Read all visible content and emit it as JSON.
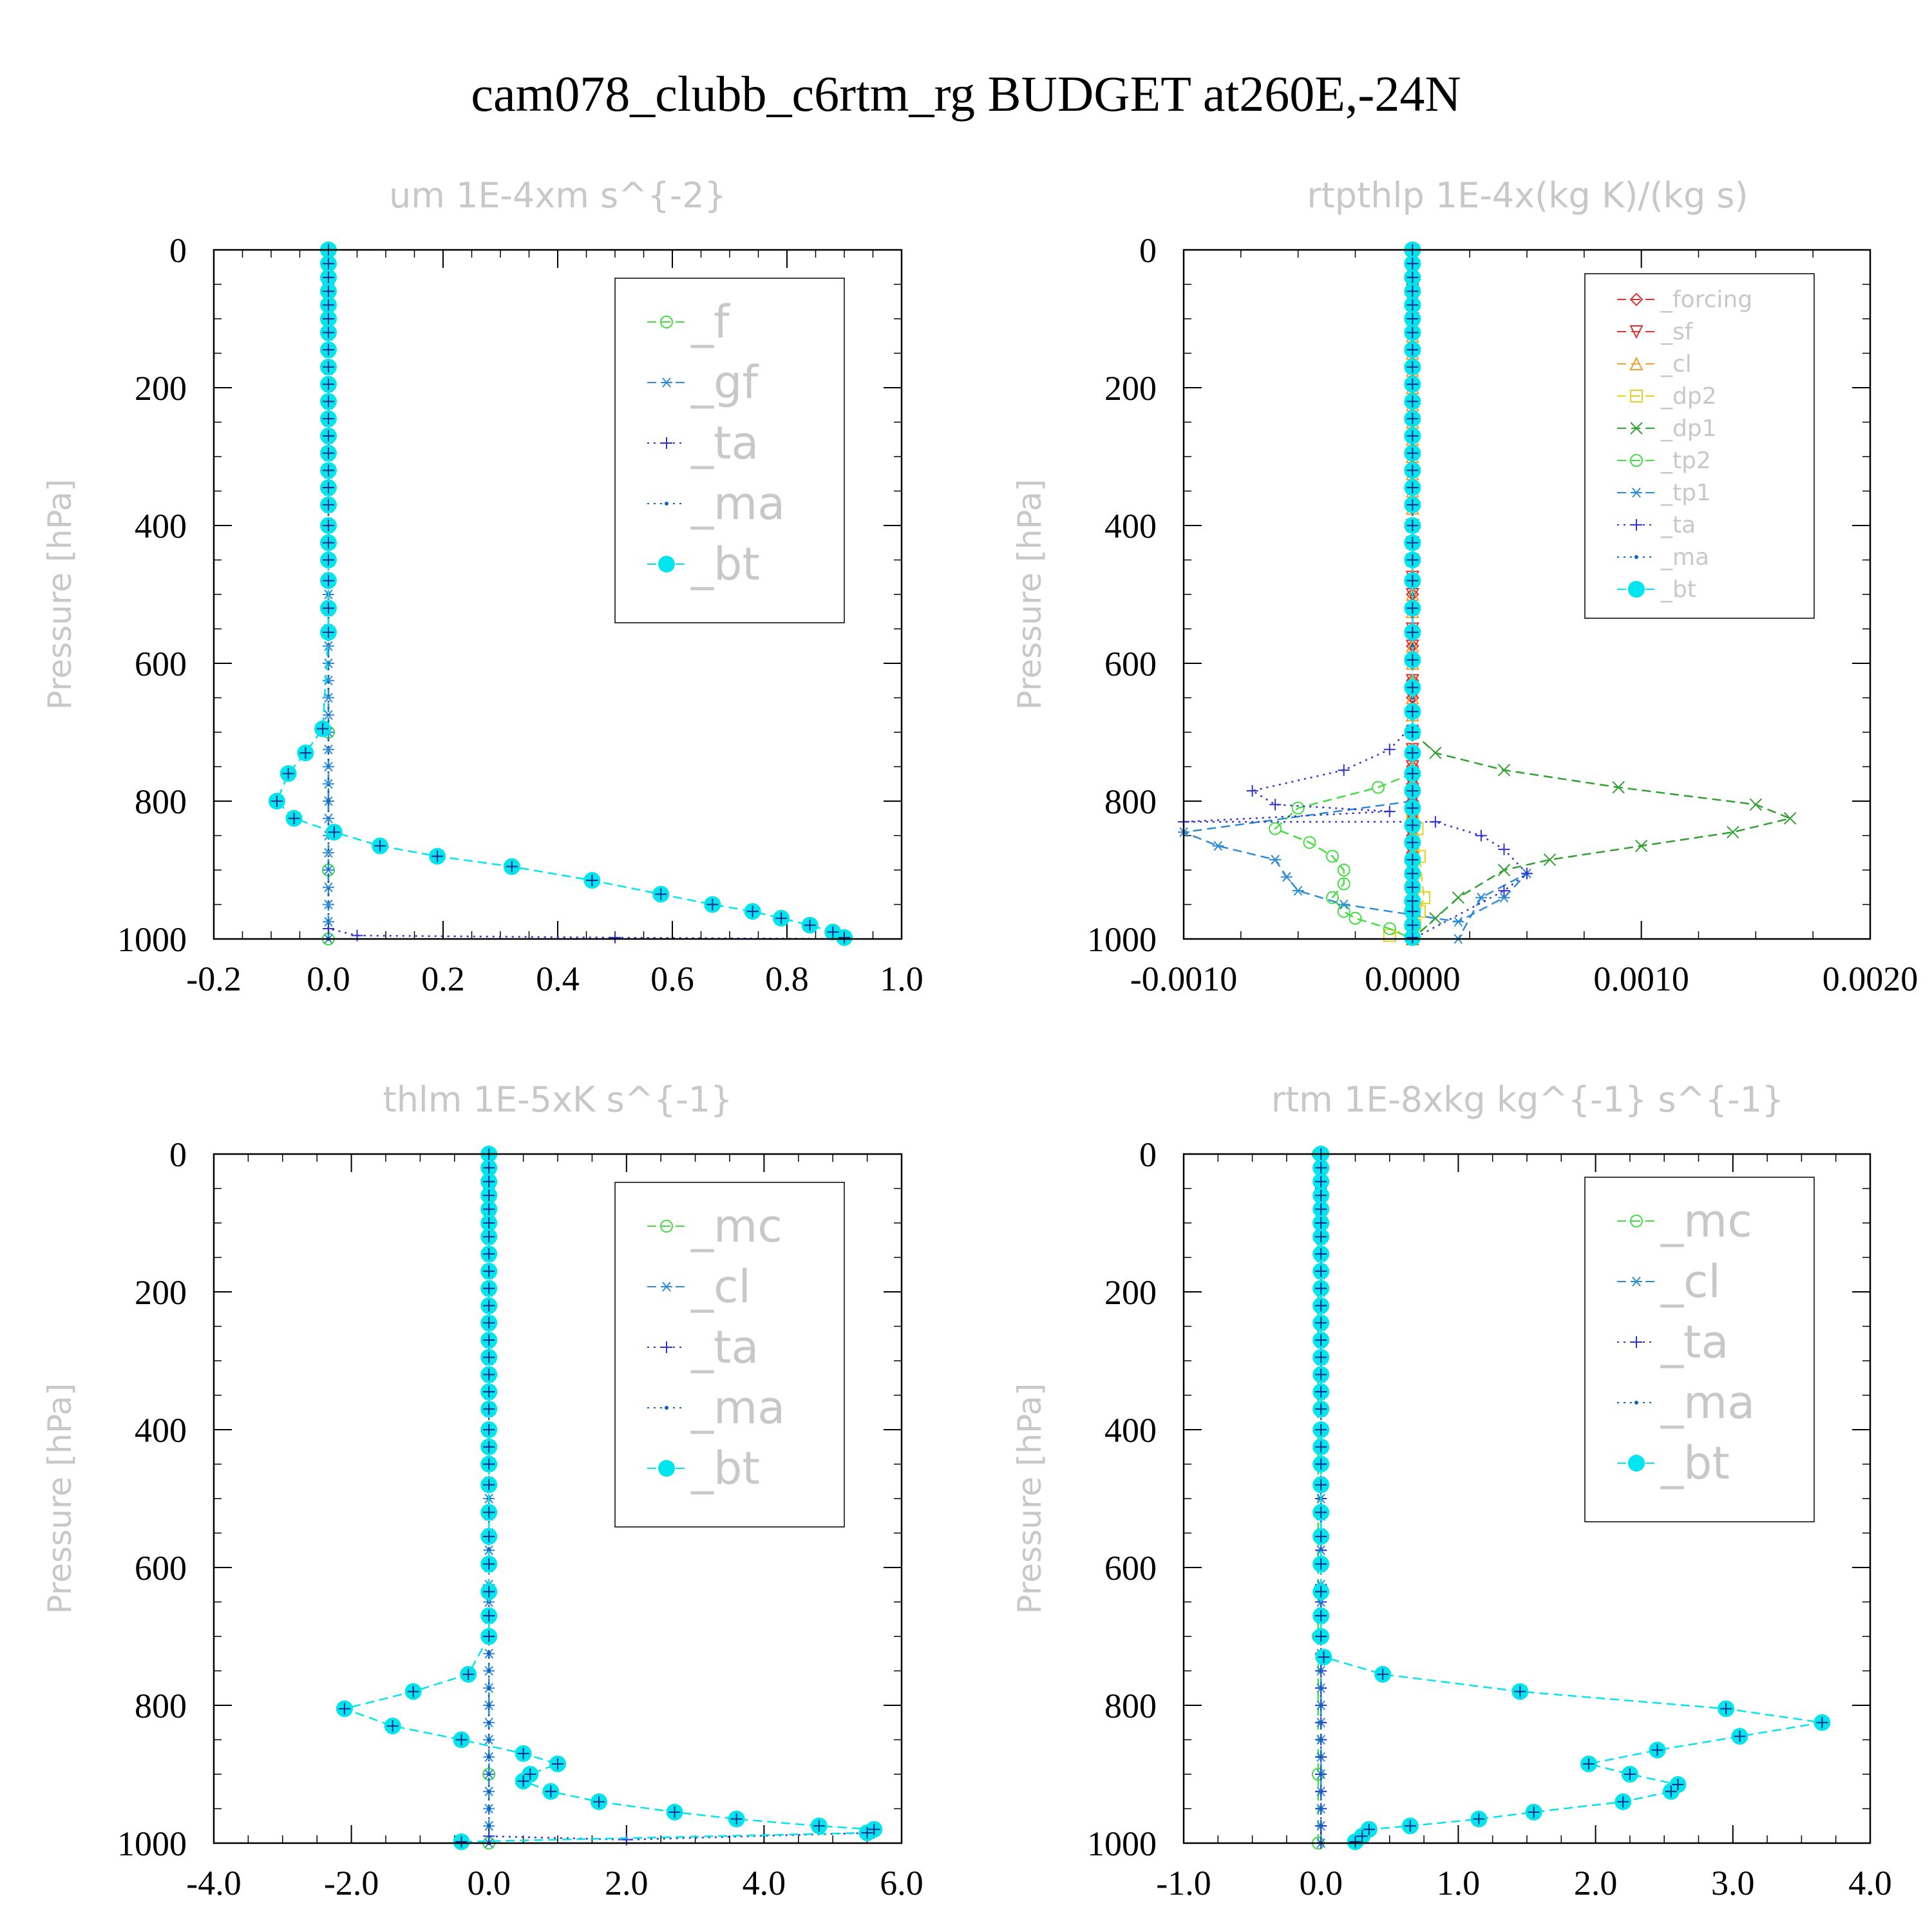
{
  "title": "cam078_clubb_c6rtm_rg  BUDGET at260E,-24N",
  "chart_data": [
    {
      "type": "line",
      "title": "um   1E-4xm s^{-2}",
      "ylabel": "Pressure [hPa]",
      "xlim": [
        -0.2,
        1.0
      ],
      "ylim": [
        1000,
        0
      ],
      "xticks": [
        "-0.2",
        "0.0",
        "0.2",
        "0.4",
        "0.6",
        "0.8",
        "1.0"
      ],
      "yticks": [
        "0",
        "200",
        "400",
        "600",
        "800",
        "1000"
      ],
      "series": [
        {
          "name": "_f",
          "color": "#44dd44",
          "style": "dash",
          "marker": "circle",
          "x": [
            0,
            0,
            0,
            0
          ],
          "y": [
            0,
            700,
            900,
            1000
          ]
        },
        {
          "name": "_gf",
          "color": "#2e8bd6",
          "style": "dash",
          "marker": "star",
          "x": [
            0,
            0
          ],
          "y": [
            0,
            1000
          ]
        },
        {
          "name": "_ta",
          "color": "#3030d8",
          "style": "dot",
          "marker": "plus",
          "x": [
            0,
            0,
            0.05,
            0.5,
            0.9
          ],
          "y": [
            0,
            985,
            995,
            998,
            1000
          ]
        },
        {
          "name": "_ma",
          "color": "#1060c0",
          "style": "dot",
          "marker": "dot",
          "x": [
            0,
            0,
            0,
            0
          ],
          "y": [
            0,
            500,
            800,
            1000
          ]
        },
        {
          "name": "_bt",
          "color": "#00e5ee",
          "style": "dash",
          "marker": "bigdot",
          "x": [
            0,
            0,
            0,
            0,
            0,
            0,
            0,
            0,
            0,
            0,
            0,
            0,
            0,
            0,
            0,
            0,
            0,
            0,
            0,
            0,
            0,
            0,
            0,
            -0.01,
            -0.04,
            -0.07,
            -0.09,
            -0.06,
            0.01,
            0.09,
            0.19,
            0.32,
            0.46,
            0.58,
            0.67,
            0.74,
            0.79,
            0.84,
            0.88,
            0.9
          ],
          "y": [
            0,
            20,
            40,
            60,
            80,
            100,
            120,
            145,
            170,
            195,
            220,
            245,
            270,
            295,
            320,
            345,
            370,
            400,
            425,
            450,
            480,
            520,
            555,
            695,
            730,
            760,
            800,
            825,
            845,
            865,
            880,
            895,
            915,
            935,
            950,
            960,
            970,
            980,
            990,
            998
          ]
        }
      ],
      "legend": "top-right"
    },
    {
      "type": "line",
      "title": "rtpthlp   1E-4x(kg K)/(kg s)",
      "ylabel": "Pressure [hPa]",
      "xlim": [
        -0.001,
        0.002
      ],
      "ylim": [
        1000,
        0
      ],
      "xticks": [
        "-0.0010",
        "0.0000",
        "0.0010",
        "0.0020"
      ],
      "yticks": [
        "0",
        "200",
        "400",
        "600",
        "800",
        "1000"
      ],
      "series": [
        {
          "name": "_forcing",
          "color": "#e03030",
          "style": "dash",
          "marker": "diamond",
          "x": [
            0,
            0
          ],
          "y": [
            0,
            1000
          ]
        },
        {
          "name": "_sf",
          "color": "#e03030",
          "style": "dash",
          "marker": "triangle-down",
          "x": [
            0,
            0
          ],
          "y": [
            0,
            1000
          ]
        },
        {
          "name": "_cl",
          "color": "#f0a030",
          "style": "dash",
          "marker": "triangle-up",
          "x": [
            0,
            0
          ],
          "y": [
            0,
            1000
          ]
        },
        {
          "name": "_dp2",
          "color": "#e8d020",
          "style": "dash",
          "marker": "square",
          "x": [
            0,
            0,
            2e-05,
            3e-05,
            5e-05,
            3e-05,
            1e-05,
            -0.0001
          ],
          "y": [
            0,
            820,
            840,
            880,
            940,
            960,
            980,
            995
          ]
        },
        {
          "name": "_dp1",
          "color": "#30a030",
          "style": "dash",
          "marker": "x",
          "x": [
            0,
            0.0001,
            0.0004,
            0.0009,
            0.0015,
            0.00165,
            0.0014,
            0.001,
            0.0006,
            0.0004,
            0.0002,
            0.0001,
            0
          ],
          "y": [
            700,
            730,
            755,
            780,
            805,
            825,
            845,
            865,
            885,
            900,
            940,
            970,
            1000
          ]
        },
        {
          "name": "_tp2",
          "color": "#44dd44",
          "style": "dash",
          "marker": "circle",
          "x": [
            0,
            -0.00015,
            -0.0005,
            -0.0006,
            -0.00045,
            -0.00035,
            -0.0003,
            -0.0003,
            -0.00035,
            -0.0003,
            -0.00025,
            -0.0001,
            0
          ],
          "y": [
            760,
            780,
            810,
            840,
            860,
            880,
            900,
            920,
            940,
            960,
            970,
            985,
            1000
          ]
        },
        {
          "name": "_tp1",
          "color": "#2e8bd6",
          "style": "dash",
          "marker": "star",
          "x": [
            0,
            -0.001,
            -0.00085,
            -0.0006,
            -0.00055,
            -0.0005,
            -0.0003,
            0,
            0.0002,
            0.0004,
            0.0005,
            0.0003,
            0.0002
          ],
          "y": [
            800,
            845,
            865,
            885,
            910,
            930,
            950,
            965,
            975,
            940,
            905,
            940,
            1000
          ]
        },
        {
          "name": "_ta",
          "color": "#3030d8",
          "style": "dot",
          "marker": "plus",
          "x": [
            0,
            -0.0001,
            -0.0003,
            -0.0007,
            -0.0006,
            -0.0001,
            -0.001,
            0.0001,
            0.0003,
            0.0004,
            0.0005,
            0.0004,
            0
          ],
          "y": [
            690,
            725,
            755,
            785,
            805,
            815,
            830,
            830,
            850,
            870,
            905,
            930,
            1000
          ]
        },
        {
          "name": "_ma",
          "color": "#1060c0",
          "style": "dot",
          "marker": "dot",
          "x": [
            0,
            0
          ],
          "y": [
            0,
            1000
          ]
        },
        {
          "name": "_bt",
          "color": "#00e5ee",
          "style": "dash",
          "marker": "bigdot",
          "x": [
            0,
            0,
            0,
            0,
            0,
            0,
            0,
            0,
            0,
            0,
            0,
            0,
            0,
            0,
            0,
            0,
            0,
            0,
            0,
            0,
            0,
            0,
            0,
            0,
            0,
            0,
            0,
            0,
            0,
            0,
            0,
            0,
            0,
            0,
            0,
            0,
            0,
            0,
            0,
            0
          ],
          "y": [
            0,
            20,
            40,
            60,
            80,
            100,
            120,
            145,
            170,
            195,
            220,
            245,
            270,
            295,
            320,
            345,
            370,
            400,
            425,
            450,
            480,
            520,
            555,
            595,
            635,
            670,
            700,
            730,
            760,
            785,
            810,
            835,
            860,
            885,
            905,
            925,
            945,
            960,
            980,
            998
          ]
        }
      ],
      "legend": "top-right"
    },
    {
      "type": "line",
      "title": "thlm   1E-5xK s^{-1}",
      "ylabel": "Pressure [hPa]",
      "xlim": [
        -4.0,
        6.0
      ],
      "ylim": [
        1000,
        0
      ],
      "xticks": [
        "-4.0",
        "-2.0",
        "0.0",
        "2.0",
        "4.0",
        "6.0"
      ],
      "yticks": [
        "0",
        "200",
        "400",
        "600",
        "800",
        "1000"
      ],
      "series": [
        {
          "name": "_mc",
          "color": "#44dd44",
          "style": "dash",
          "marker": "circle",
          "x": [
            0,
            0,
            0,
            0
          ],
          "y": [
            0,
            700,
            900,
            1000
          ]
        },
        {
          "name": "_cl",
          "color": "#2e8bd6",
          "style": "dash",
          "marker": "star",
          "x": [
            0,
            0
          ],
          "y": [
            0,
            1000
          ]
        },
        {
          "name": "_ta",
          "color": "#3030d8",
          "style": "dot",
          "marker": "plus",
          "x": [
            0,
            0,
            2.0,
            5.6
          ],
          "y": [
            0,
            990,
            995,
            985
          ]
        },
        {
          "name": "_ma",
          "color": "#1060c0",
          "style": "dot",
          "marker": "dot",
          "x": [
            0,
            0
          ],
          "y": [
            0,
            1000
          ]
        },
        {
          "name": "_bt",
          "color": "#00e5ee",
          "style": "dash",
          "marker": "bigdot",
          "x": [
            0,
            0,
            0,
            0,
            0,
            0,
            0,
            0,
            0,
            0,
            0,
            0,
            0,
            0,
            0,
            0,
            0,
            0,
            0,
            0,
            0,
            0,
            0,
            0,
            0,
            0,
            0,
            -0.3,
            -1.1,
            -2.1,
            -1.4,
            -0.4,
            0.5,
            1.0,
            0.6,
            0.5,
            0.9,
            1.6,
            2.7,
            3.6,
            4.8,
            5.6,
            5.5,
            -0.4
          ],
          "y": [
            0,
            20,
            40,
            60,
            80,
            100,
            120,
            145,
            170,
            195,
            220,
            245,
            270,
            295,
            320,
            345,
            370,
            400,
            425,
            450,
            480,
            520,
            555,
            595,
            635,
            670,
            700,
            755,
            780,
            805,
            830,
            850,
            870,
            885,
            900,
            910,
            925,
            940,
            955,
            965,
            975,
            980,
            985,
            998
          ]
        }
      ],
      "legend": "top-right"
    },
    {
      "type": "line",
      "title": "rtm   1E-8xkg kg^{-1} s^{-1}",
      "ylabel": "Pressure [hPa]",
      "xlim": [
        -1.0,
        4.0
      ],
      "ylim": [
        1000,
        0
      ],
      "xticks": [
        "-1.0",
        "0.0",
        "1.0",
        "2.0",
        "3.0",
        "4.0"
      ],
      "yticks": [
        "0",
        "200",
        "400",
        "600",
        "800",
        "1000"
      ],
      "series": [
        {
          "name": "_mc",
          "color": "#44dd44",
          "style": "dash",
          "marker": "circle",
          "x": [
            -0.02,
            -0.02,
            -0.02,
            -0.02
          ],
          "y": [
            0,
            700,
            900,
            1000
          ]
        },
        {
          "name": "_cl",
          "color": "#2e8bd6",
          "style": "dash",
          "marker": "star",
          "x": [
            0,
            0
          ],
          "y": [
            0,
            1000
          ]
        },
        {
          "name": "_ta",
          "color": "#3030d8",
          "style": "dot",
          "marker": "plus",
          "x": [
            0,
            0
          ],
          "y": [
            0,
            1000
          ]
        },
        {
          "name": "_ma",
          "color": "#1060c0",
          "style": "dot",
          "marker": "dot",
          "x": [
            0,
            0
          ],
          "y": [
            0,
            1000
          ]
        },
        {
          "name": "_bt",
          "color": "#00e5ee",
          "style": "dash",
          "marker": "bigdot",
          "x": [
            0,
            0,
            0,
            0,
            0,
            0,
            0,
            0,
            0,
            0,
            0,
            0,
            0,
            0,
            0,
            0,
            0,
            0,
            0,
            0,
            0,
            0,
            0,
            0,
            0,
            0,
            0,
            0.02,
            0.45,
            1.45,
            2.95,
            3.65,
            3.05,
            2.45,
            1.95,
            2.25,
            2.6,
            2.55,
            2.2,
            1.55,
            1.15,
            0.65,
            0.35,
            0.3,
            0.25
          ],
          "y": [
            0,
            20,
            40,
            60,
            80,
            100,
            120,
            145,
            170,
            195,
            220,
            245,
            270,
            295,
            320,
            345,
            370,
            400,
            425,
            450,
            480,
            520,
            555,
            595,
            635,
            670,
            700,
            730,
            755,
            780,
            805,
            825,
            845,
            865,
            885,
            900,
            915,
            925,
            940,
            955,
            965,
            975,
            980,
            990,
            998
          ]
        }
      ],
      "legend": "top-right"
    }
  ]
}
